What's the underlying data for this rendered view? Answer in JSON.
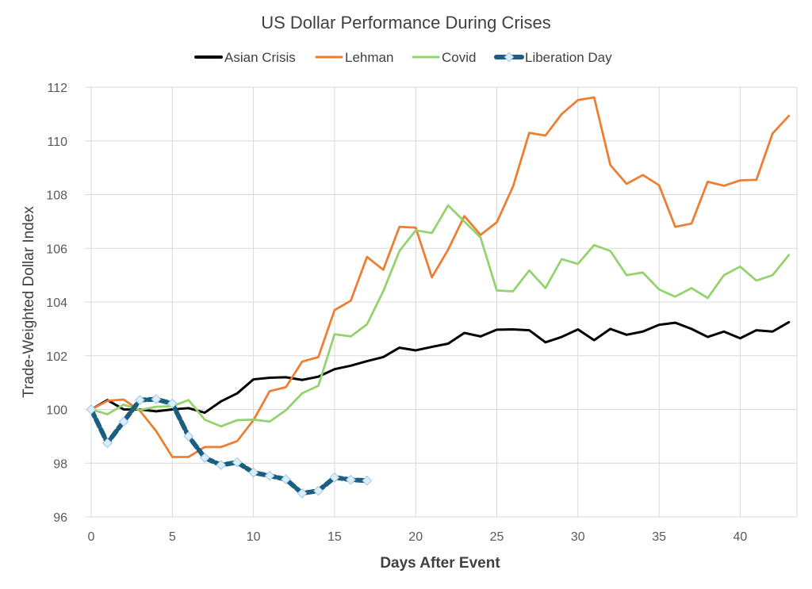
{
  "chart_data": {
    "type": "line",
    "title": "US Dollar Performance During Crises",
    "xlabel": "Days After Event",
    "ylabel": "Trade-Weighted Dollar Index",
    "xlim": [
      0,
      43.5
    ],
    "ylim": [
      96,
      112
    ],
    "x_ticks": [
      0,
      5,
      10,
      15,
      20,
      25,
      30,
      35,
      40
    ],
    "y_ticks": [
      96,
      98,
      100,
      102,
      104,
      106,
      108,
      110,
      112
    ],
    "grid": true,
    "legend_position": "top",
    "series": [
      {
        "name": "Asian Crisis",
        "color": "#000000",
        "marker": "none",
        "x": [
          0,
          1,
          2,
          3,
          4,
          5,
          6,
          7,
          8,
          9,
          10,
          11,
          12,
          13,
          14,
          15,
          16,
          17,
          18,
          19,
          20,
          21,
          22,
          23,
          24,
          25,
          26,
          27,
          28,
          29,
          30,
          31,
          32,
          33,
          34,
          35,
          36,
          37,
          38,
          39,
          40,
          41,
          42,
          43
        ],
        "values": [
          100.0,
          100.35,
          100.0,
          100.0,
          99.93,
          100.0,
          100.05,
          99.88,
          100.3,
          100.6,
          101.12,
          101.18,
          101.2,
          101.1,
          101.22,
          101.5,
          101.63,
          101.8,
          101.95,
          102.3,
          102.2,
          102.33,
          102.45,
          102.85,
          102.72,
          102.97,
          102.98,
          102.95,
          102.5,
          102.7,
          102.98,
          102.58,
          103.0,
          102.78,
          102.9,
          103.15,
          103.23,
          103.0,
          102.7,
          102.9,
          102.65,
          102.95,
          102.9,
          103.25
        ]
      },
      {
        "name": "Lehman",
        "color": "#ed7d31",
        "marker": "none",
        "x": [
          0,
          1,
          2,
          3,
          4,
          5,
          6,
          7,
          8,
          9,
          10,
          11,
          12,
          13,
          14,
          15,
          16,
          17,
          18,
          19,
          20,
          21,
          22,
          23,
          24,
          25,
          26,
          27,
          28,
          29,
          30,
          31,
          32,
          33,
          34,
          35,
          36,
          37,
          38,
          39,
          40,
          41,
          42,
          43
        ],
        "values": [
          100.0,
          100.32,
          100.37,
          99.95,
          99.2,
          98.23,
          98.23,
          98.6,
          98.6,
          98.82,
          99.6,
          100.68,
          100.83,
          101.78,
          101.95,
          103.7,
          104.05,
          105.68,
          105.2,
          106.8,
          106.77,
          104.92,
          105.95,
          107.2,
          106.5,
          106.97,
          108.3,
          110.3,
          110.2,
          111.0,
          111.52,
          111.62,
          109.1,
          108.4,
          108.73,
          108.35,
          106.8,
          106.92,
          108.48,
          108.33,
          108.53,
          108.55,
          110.28,
          110.93
        ]
      },
      {
        "name": "Covid",
        "color": "#92d36e",
        "marker": "none",
        "x": [
          0,
          1,
          2,
          3,
          4,
          5,
          6,
          7,
          8,
          9,
          10,
          11,
          12,
          13,
          14,
          15,
          16,
          17,
          18,
          19,
          20,
          21,
          22,
          23,
          24,
          25,
          26,
          27,
          28,
          29,
          30,
          31,
          32,
          33,
          34,
          35,
          36,
          37,
          38,
          39,
          40,
          41,
          42,
          43
        ],
        "values": [
          100.0,
          99.82,
          100.18,
          99.98,
          100.1,
          100.12,
          100.35,
          99.62,
          99.37,
          99.6,
          99.62,
          99.55,
          99.97,
          100.6,
          100.88,
          102.8,
          102.72,
          103.17,
          104.4,
          105.9,
          106.67,
          106.57,
          107.6,
          107.0,
          106.4,
          104.43,
          104.4,
          105.18,
          104.52,
          105.6,
          105.42,
          106.12,
          105.9,
          105.0,
          105.1,
          104.47,
          104.2,
          104.52,
          104.15,
          105.0,
          105.32,
          104.8,
          105.0,
          105.75
        ]
      },
      {
        "name": "Liberation Day",
        "color": "#1a5e80",
        "marker": "diamond",
        "x": [
          0,
          1,
          2,
          3,
          4,
          5,
          6,
          7,
          8,
          9,
          10,
          11,
          12,
          13,
          14,
          15,
          16,
          17
        ],
        "values": [
          100.0,
          98.75,
          99.55,
          100.35,
          100.38,
          100.22,
          99.0,
          98.2,
          97.93,
          98.03,
          97.65,
          97.53,
          97.4,
          96.88,
          96.97,
          97.47,
          97.38,
          97.35
        ]
      }
    ]
  }
}
